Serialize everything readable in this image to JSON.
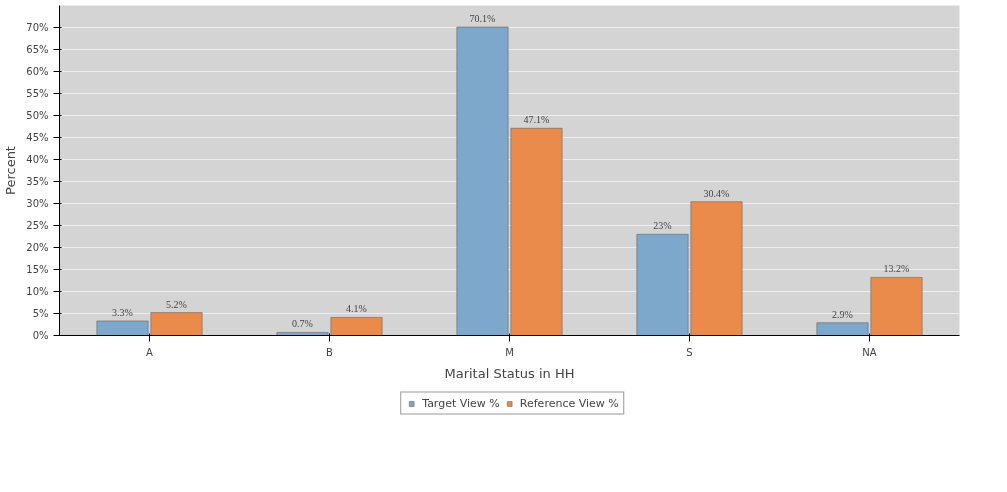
{
  "chart_data": {
    "type": "bar",
    "xlabel": "Marital Status in HH",
    "ylabel": "Percent",
    "categories": [
      "A",
      "B",
      "M",
      "S",
      "NA"
    ],
    "series": [
      {
        "name": "Target View %",
        "color": "#7ea7cc",
        "values": [
          3.3,
          0.7,
          70.1,
          23,
          2.9
        ],
        "value_labels": [
          "3.3%",
          "0.7%",
          "70.1%",
          "23%",
          "2.9%"
        ]
      },
      {
        "name": "Reference View %",
        "color": "#eb8b4b",
        "values": [
          5.2,
          4.1,
          47.1,
          30.4,
          13.2
        ],
        "value_labels": [
          "5.2%",
          "4.1%",
          "47.1%",
          "30.4%",
          "13.2%"
        ]
      }
    ],
    "ylim": [
      0,
      75
    ],
    "yticks": [
      {
        "value": 0,
        "label": "0%"
      },
      {
        "value": 5,
        "label": "5%"
      },
      {
        "value": 10,
        "label": "10%"
      },
      {
        "value": 15,
        "label": "15%"
      },
      {
        "value": 20,
        "label": "20%"
      },
      {
        "value": 25,
        "label": "25%"
      },
      {
        "value": 30,
        "label": "30%"
      },
      {
        "value": 35,
        "label": "35%"
      },
      {
        "value": 40,
        "label": "40%"
      },
      {
        "value": 45,
        "label": "45%"
      },
      {
        "value": 50,
        "label": "50%"
      },
      {
        "value": 55,
        "label": "55%"
      },
      {
        "value": 60,
        "label": "60%"
      },
      {
        "value": 65,
        "label": "65%"
      },
      {
        "value": 70,
        "label": "70%"
      }
    ],
    "grid": "y",
    "legend": "bottom"
  }
}
